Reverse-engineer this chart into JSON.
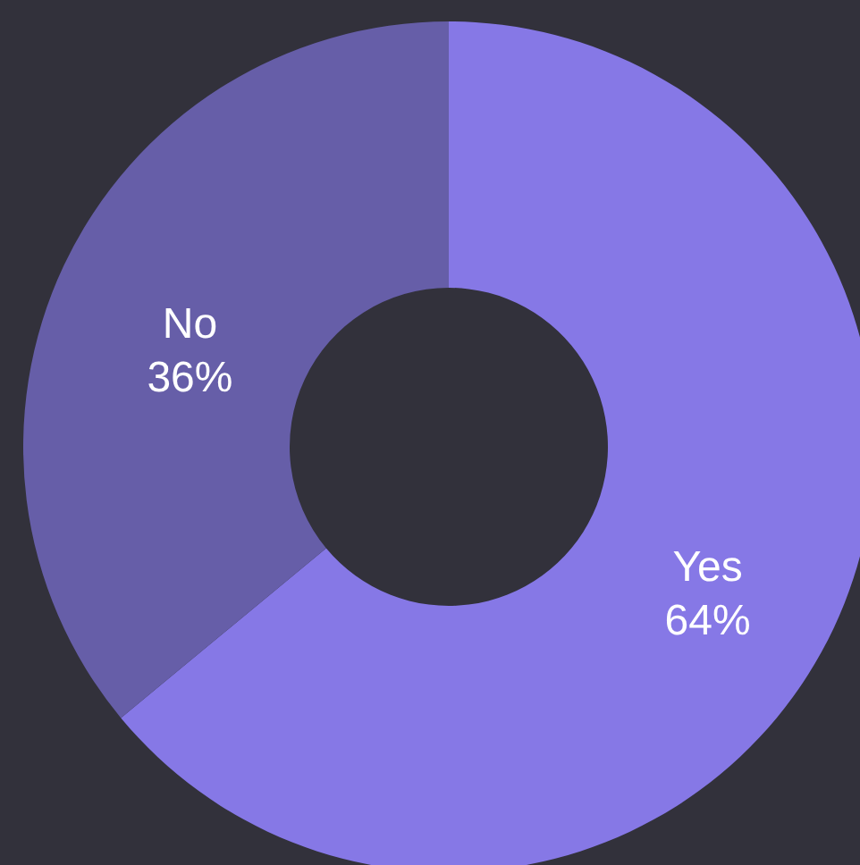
{
  "chart_data": {
    "type": "donut",
    "categories": [
      "Yes",
      "No"
    ],
    "values": [
      64,
      36
    ],
    "colors": [
      "#8678e6",
      "#665ea8"
    ],
    "value_labels": [
      "64%",
      "36%"
    ]
  }
}
